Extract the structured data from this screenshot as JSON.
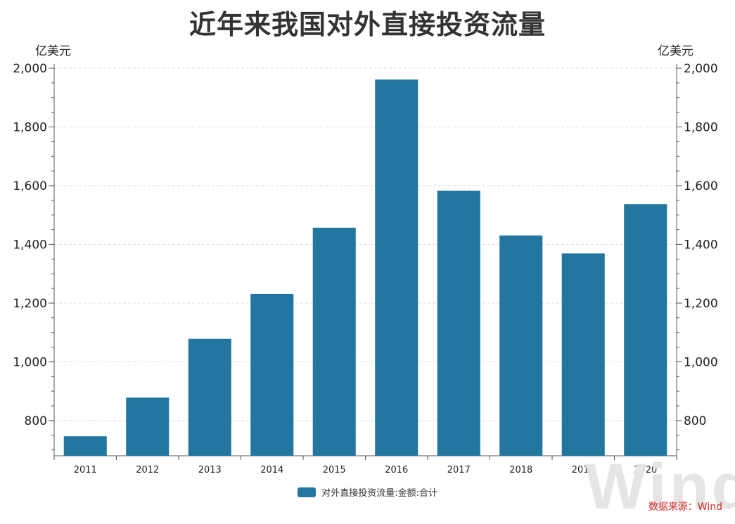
{
  "title": "近年来我国对外直接投资流量",
  "unit_left": "亿美元",
  "unit_right": "亿美元",
  "legend_label": "对外直接投资流量:金额:合计",
  "source": "数据来源：Wind",
  "watermark": "Wind",
  "colors": {
    "bar": "#22769f",
    "source": "#d42a2a",
    "axis": "#555555",
    "grid": "#dddddd"
  },
  "chart_data": {
    "type": "bar",
    "categories": [
      "2011",
      "2012",
      "2013",
      "2014",
      "2015",
      "2016",
      "2017",
      "2018",
      "2019",
      "2020"
    ],
    "series": [
      {
        "name": "对外直接投资流量:金额:合计",
        "values": [
          746.5,
          878,
          1078.4,
          1231.2,
          1456.7,
          1961.5,
          1582.9,
          1430.4,
          1369.1,
          1537.1
        ]
      }
    ],
    "ylim": [
      680,
      2000
    ],
    "yticks": [
      800,
      1000,
      1200,
      1400,
      1600,
      1800,
      2000
    ],
    "ytick_labels": [
      "800",
      "1,000",
      "1,200",
      "1,400",
      "1,600",
      "1,800",
      "2,000"
    ],
    "ylabel": "亿美元",
    "grid": true,
    "legend_position": "bottom"
  }
}
